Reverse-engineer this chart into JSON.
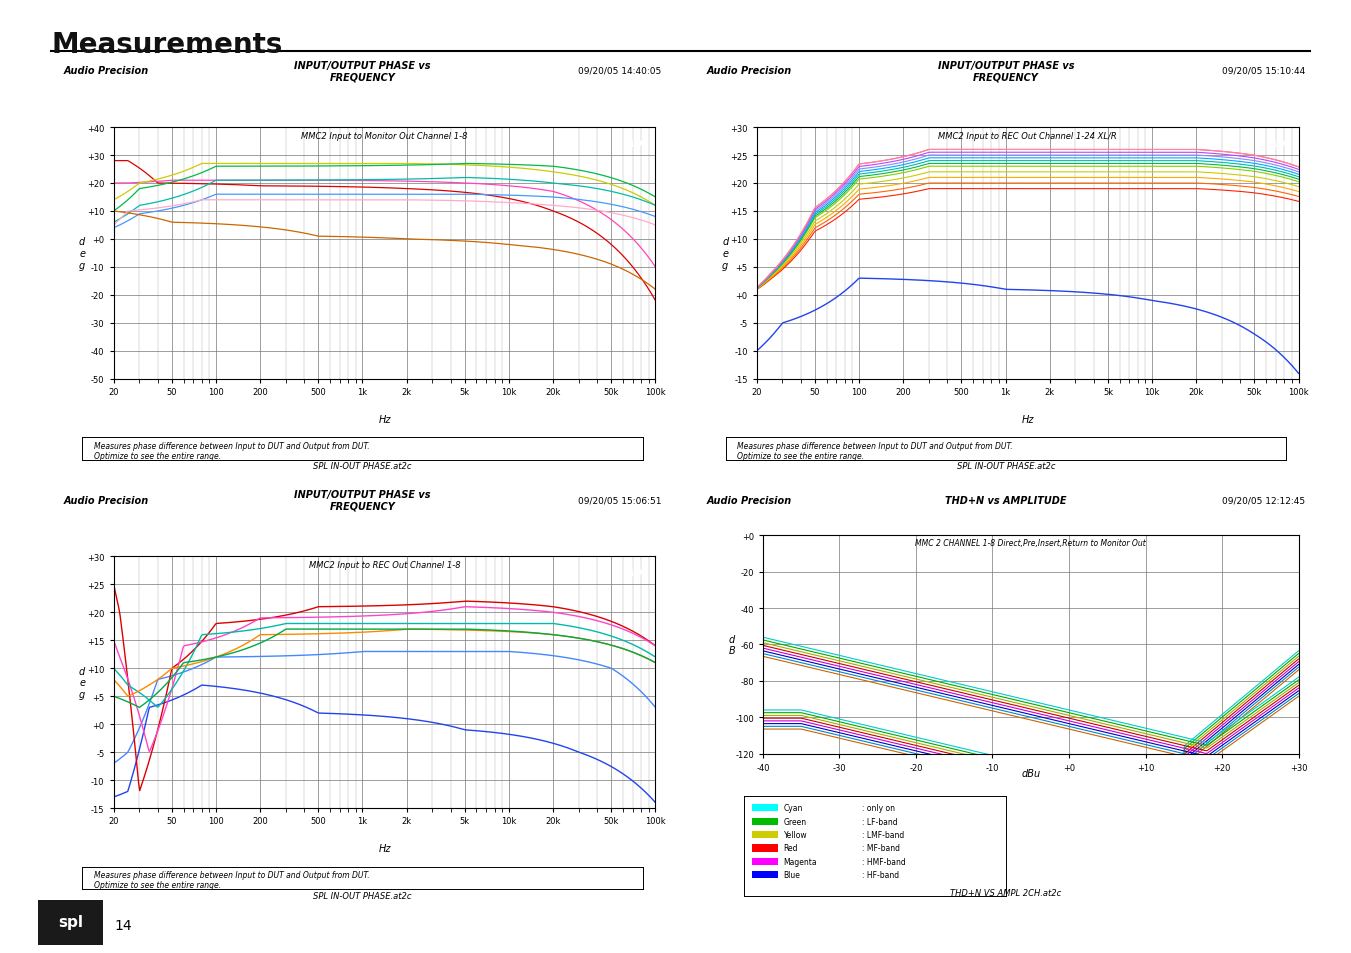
{
  "title": "Measurements",
  "page_num": "14",
  "background": "#ffffff",
  "chart1": {
    "header_left": "Audio Precision",
    "header_center": "INPUT/OUTPUT PHASE vs\nFREQUENCY",
    "header_right": "09/20/05 14:40:05",
    "subtitle": "MMC2 Input to Monitor Out Channel 1-8",
    "ylabel": "d\ne\ng",
    "xlabel": "Hz",
    "ylim": [
      -50,
      40
    ],
    "yticks": [
      -50,
      -40,
      -30,
      -20,
      -10,
      0,
      10,
      20,
      30,
      40
    ],
    "ytick_labels": [
      "-50",
      "-40",
      "-30",
      "-20",
      "-10",
      "+0",
      "+10",
      "+20",
      "+30",
      "+40"
    ],
    "xtick_labels": [
      "20",
      "50",
      "100",
      "200",
      "500",
      "1k",
      "2k",
      "5k",
      "10k",
      "20k",
      "50k",
      "100k"
    ],
    "footer_text": "Measures phase difference between Input to DUT and Output from DUT.\nOptimize to see the entire range.",
    "footer_file": "SPL IN-OUT PHASE.at2c"
  },
  "chart2": {
    "header_left": "Audio Precision",
    "header_center": "INPUT/OUTPUT PHASE vs\nFREQUENCY",
    "header_right": "09/20/05 15:10:44",
    "subtitle": "MMC2 Input to REC Out Channel 1-24 XL/R",
    "ylabel": "d\ne\ng",
    "xlabel": "Hz",
    "ylim": [
      -15,
      30
    ],
    "yticks": [
      -15,
      -10,
      -5,
      0,
      5,
      10,
      15,
      20,
      25,
      30
    ],
    "ytick_labels": [
      "-15",
      "-10",
      "-5",
      "+0",
      "+5",
      "+10",
      "+15",
      "+20",
      "+25",
      "+30"
    ],
    "xtick_labels": [
      "20",
      "50",
      "100",
      "200",
      "500",
      "1k",
      "2k",
      "5k",
      "10k",
      "20k",
      "50k",
      "100k"
    ],
    "footer_text": "Measures phase difference between Input to DUT and Output from DUT.\nOptimize to see the entire range.",
    "footer_file": "SPL IN-OUT PHASE.at2c"
  },
  "chart3": {
    "header_left": "Audio Precision",
    "header_center": "INPUT/OUTPUT PHASE vs\nFREQUENCY",
    "header_right": "09/20/05 15:06:51",
    "subtitle": "MMC2 Input to REC Out Channel 1-8",
    "ylabel": "d\ne\ng",
    "xlabel": "Hz",
    "ylim": [
      -15,
      30
    ],
    "yticks": [
      -15,
      -10,
      -5,
      0,
      5,
      10,
      15,
      20,
      25,
      30
    ],
    "ytick_labels": [
      "-15",
      "-10",
      "-5",
      "+0",
      "+5",
      "+10",
      "+15",
      "+20",
      "+25",
      "+30"
    ],
    "xtick_labels": [
      "20",
      "50",
      "100",
      "200",
      "500",
      "1k",
      "2k",
      "5k",
      "10k",
      "20k",
      "50k",
      "100k"
    ],
    "footer_text": "Measures phase difference between Input to DUT and Output from DUT.\nOptimize to see the entire range.",
    "footer_file": "SPL IN-OUT PHASE.at2c"
  },
  "chart4": {
    "header_left": "Audio Precision",
    "header_center": "THD+N vs AMPLITUDE",
    "header_right": "09/20/05 12:12:45",
    "subtitle": "MMC 2 CHANNEL 1-8 Direct,Pre,Insert,Return to Monitor Out",
    "ylabel": "d\nB",
    "xlabel": "dBu",
    "ylim": [
      -120,
      0
    ],
    "yticks": [
      -120,
      -100,
      -80,
      -60,
      -40,
      -20,
      0
    ],
    "ytick_labels": [
      "-120",
      "-100",
      "-80",
      "-60",
      "-40",
      "-20",
      "+0"
    ],
    "xlim": [
      -40,
      30
    ],
    "xticks": [
      -40,
      -30,
      -20,
      -10,
      0,
      10,
      20,
      30
    ],
    "xtick_labels": [
      "-40",
      "-30",
      "-20",
      "-10",
      "+0",
      "+10",
      "+20",
      "+30"
    ],
    "footer_file": "THD+N VS AMPL 2CH.at2c",
    "legend_colors": [
      "#00ffff",
      "#00bb00",
      "#cccc00",
      "#ff0000",
      "#ff00ff",
      "#0000ff"
    ],
    "legend_names": [
      "Cyan",
      "Green",
      "Yellow",
      "Red",
      "Magenta",
      "Blue"
    ],
    "legend_labels": [
      ": only on",
      ": LF-band",
      ": LMF-band",
      ": MF-band",
      ": HMF-band",
      ": HF-band"
    ]
  }
}
